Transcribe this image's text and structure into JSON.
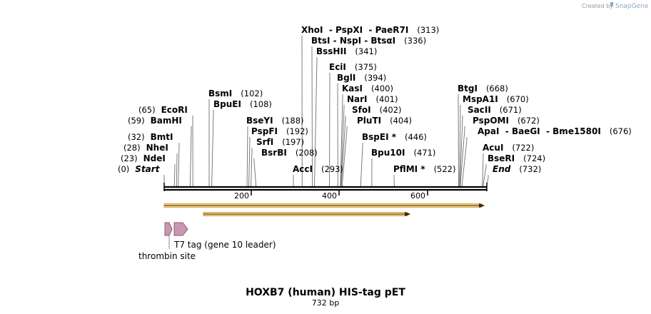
{
  "credit": {
    "prefix": "Created by",
    "brand": "SnapGene"
  },
  "map": {
    "title": "HOXB7 (human) HIS-tag pET",
    "length_label": "732 bp",
    "total_bp": 732,
    "ticks": [
      "200",
      "400",
      "600"
    ]
  },
  "sites": [
    {
      "name": "Start",
      "pos": "(0)",
      "side": "left",
      "italic": true
    },
    {
      "name": "NdeI",
      "pos": "(23)",
      "side": "left"
    },
    {
      "name": "NheI",
      "pos": "(28)",
      "side": "left"
    },
    {
      "name": "BmtI",
      "pos": "(32)",
      "side": "left"
    },
    {
      "name": "BamHI",
      "pos": "(59)",
      "side": "left"
    },
    {
      "name": "EcoRI",
      "pos": "(65)",
      "side": "left"
    },
    {
      "name": "BsmI",
      "pos": "(102)",
      "side": "right"
    },
    {
      "name": "BpuEI",
      "pos": "(108)",
      "side": "right"
    },
    {
      "name": "BseYI",
      "pos": "(188)",
      "side": "right"
    },
    {
      "name": "PspFI",
      "pos": "(192)",
      "side": "right"
    },
    {
      "name": "SrfI",
      "pos": "(197)",
      "side": "right"
    },
    {
      "name": "BsrBI",
      "pos": "(208)",
      "side": "right"
    },
    {
      "name": "AccI",
      "pos": "(293)",
      "side": "right"
    },
    {
      "name": "XhoI  - PspXI  - PaeR7I",
      "pos": "(313)",
      "side": "right"
    },
    {
      "name": "BtsI - NspI - BtsαI",
      "pos": "(336)",
      "side": "right"
    },
    {
      "name": "BssHII",
      "pos": "(341)",
      "side": "right"
    },
    {
      "name": "EciI",
      "pos": "(375)",
      "side": "right"
    },
    {
      "name": "BglI",
      "pos": "(394)",
      "side": "right"
    },
    {
      "name": "KasI",
      "pos": "(400)",
      "side": "right"
    },
    {
      "name": "NarI",
      "pos": "(401)",
      "side": "right"
    },
    {
      "name": "SfoI",
      "pos": "(402)",
      "side": "right"
    },
    {
      "name": "PluTI",
      "pos": "(404)",
      "side": "right"
    },
    {
      "name": "BspEI *",
      "pos": "(446)",
      "side": "right"
    },
    {
      "name": "Bpu10I",
      "pos": "(471)",
      "side": "right"
    },
    {
      "name": "PflMI *",
      "pos": "(522)",
      "side": "right"
    },
    {
      "name": "BtgI",
      "pos": "(668)",
      "side": "right"
    },
    {
      "name": "MspA1I",
      "pos": "(670)",
      "side": "right"
    },
    {
      "name": "SacII",
      "pos": "(671)",
      "side": "right"
    },
    {
      "name": "PspOMI",
      "pos": "(672)",
      "side": "right"
    },
    {
      "name": "ApaI  - BaeGI  - Bme1580I",
      "pos": "(676)",
      "side": "right"
    },
    {
      "name": "AcuI",
      "pos": "(722)",
      "side": "right"
    },
    {
      "name": "BseRI",
      "pos": "(724)",
      "side": "right"
    },
    {
      "name": "End",
      "pos": "(732)",
      "side": "right",
      "italic": true
    }
  ],
  "features": [
    {
      "name": "T7 tag (gene 10 leader)",
      "color": "#c48fa8"
    },
    {
      "name": "thrombin site",
      "color": "#c48fa8"
    }
  ],
  "colors": {
    "backbone": "#000000",
    "orf_fill": "#f2d68a",
    "orf_edge": "#e3a33c",
    "feature_fill": "#c898b0",
    "feature_edge": "#8c5a74"
  }
}
